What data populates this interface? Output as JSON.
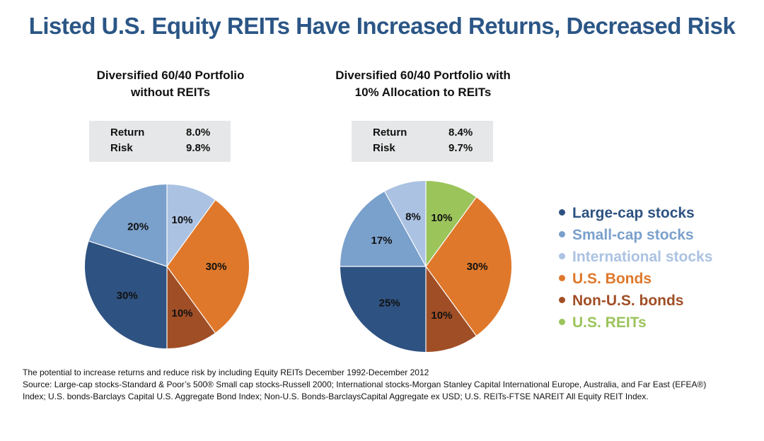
{
  "title": "Listed U.S. Equity REITs Have Increased Returns, Decreased Risk",
  "colors": {
    "title": "#2b5686",
    "large_cap": "#2e5281",
    "small_cap": "#7aa0cc",
    "international": "#abc2e2",
    "us_bonds": "#df782b",
    "non_us_bonds": "#a04e26",
    "us_reits": "#9bc45b"
  },
  "chart_data": [
    {
      "type": "pie",
      "title_lines": [
        "Diversified 60/40 Portfolio",
        "without REITs"
      ],
      "stats": [
        {
          "label": "Return",
          "value": "8.0%"
        },
        {
          "label": "Risk",
          "value": "9.8%"
        }
      ],
      "slices": [
        {
          "name": "International stocks",
          "value": 10,
          "label": "10%",
          "color": "#abc2e2"
        },
        {
          "name": "U.S. Bonds",
          "value": 30,
          "label": "30%",
          "color": "#df782b"
        },
        {
          "name": "Non-U.S. bonds",
          "value": 10,
          "label": "10%",
          "color": "#a04e26"
        },
        {
          "name": "Large-cap stocks",
          "value": 30,
          "label": "30%",
          "color": "#2e5281"
        },
        {
          "name": "Small-cap stocks",
          "value": 20,
          "label": "20%",
          "color": "#7aa0cc"
        }
      ]
    },
    {
      "type": "pie",
      "title_lines": [
        "Diversified 60/40 Portfolio with",
        "10% Allocation to REITs"
      ],
      "stats": [
        {
          "label": "Return",
          "value": "8.4%"
        },
        {
          "label": "Risk",
          "value": "9.7%"
        }
      ],
      "slices": [
        {
          "name": "U.S. REITs",
          "value": 10,
          "label": "10%",
          "color": "#9bc45b"
        },
        {
          "name": "U.S. Bonds",
          "value": 30,
          "label": "30%",
          "color": "#df782b"
        },
        {
          "name": "Non-U.S. bonds",
          "value": 10,
          "label": "10%",
          "color": "#a04e26"
        },
        {
          "name": "Large-cap stocks",
          "value": 25,
          "label": "25%",
          "color": "#2e5281"
        },
        {
          "name": "Small-cap stocks",
          "value": 17,
          "label": "17%",
          "color": "#7aa0cc"
        },
        {
          "name": "International stocks",
          "value": 8,
          "label": "8%",
          "color": "#abc2e2"
        }
      ]
    }
  ],
  "legend": [
    {
      "label": "Large-cap stocks",
      "color": "#2e5281"
    },
    {
      "label": "Small-cap stocks",
      "color": "#7aa0cc"
    },
    {
      "label": "International stocks",
      "color": "#abc2e2"
    },
    {
      "label": "U.S. Bonds",
      "color": "#df782b"
    },
    {
      "label": "Non-U.S. bonds",
      "color": "#a04e26"
    },
    {
      "label": "U.S. REITs",
      "color": "#9bc45b"
    }
  ],
  "footnote": {
    "line1": "The potential to increase returns and reduce risk by including Equity REITs December 1992-December 2012",
    "line2": "Source: Large-cap stocks-Standard & Poor’s 500® Small cap stocks-Russell 2000; International stocks-Morgan Stanley Capital International Europe, Australia, and Far East (EFEA®)",
    "line3": "Index; U.S. bonds-Barclays Capital U.S. Aggregate Bond Index; Non-U.S. Bonds-BarclaysCapital Aggregate ex USD; U.S. REITs-FTSE NAREIT All Equity REIT Index."
  }
}
